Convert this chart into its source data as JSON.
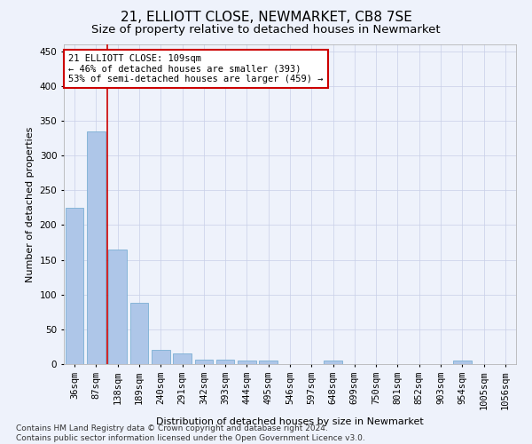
{
  "title1": "21, ELLIOTT CLOSE, NEWMARKET, CB8 7SE",
  "title2": "Size of property relative to detached houses in Newmarket",
  "xlabel": "Distribution of detached houses by size in Newmarket",
  "ylabel": "Number of detached properties",
  "categories": [
    "36sqm",
    "87sqm",
    "138sqm",
    "189sqm",
    "240sqm",
    "291sqm",
    "342sqm",
    "393sqm",
    "444sqm",
    "495sqm",
    "546sqm",
    "597sqm",
    "648sqm",
    "699sqm",
    "750sqm",
    "801sqm",
    "852sqm",
    "903sqm",
    "954sqm",
    "1005sqm",
    "1056sqm"
  ],
  "values": [
    225,
    335,
    165,
    88,
    21,
    15,
    7,
    7,
    5,
    5,
    0,
    0,
    5,
    0,
    0,
    0,
    0,
    0,
    5,
    0,
    0
  ],
  "bar_color": "#aec6e8",
  "bar_edgecolor": "#7bafd4",
  "vline_x": 1.5,
  "vline_color": "#cc0000",
  "ylim": [
    0,
    460
  ],
  "yticks": [
    0,
    50,
    100,
    150,
    200,
    250,
    300,
    350,
    400,
    450
  ],
  "annotation_text": "21 ELLIOTT CLOSE: 109sqm\n← 46% of detached houses are smaller (393)\n53% of semi-detached houses are larger (459) →",
  "annotation_box_edgecolor": "#cc0000",
  "footnote": "Contains HM Land Registry data © Crown copyright and database right 2024.\nContains public sector information licensed under the Open Government Licence v3.0.",
  "background_color": "#eef2fb",
  "plot_background": "#eef2fb",
  "title1_fontsize": 11,
  "title2_fontsize": 9.5,
  "axis_label_fontsize": 8,
  "tick_fontsize": 7.5,
  "annotation_fontsize": 7.5,
  "footnote_fontsize": 6.5
}
